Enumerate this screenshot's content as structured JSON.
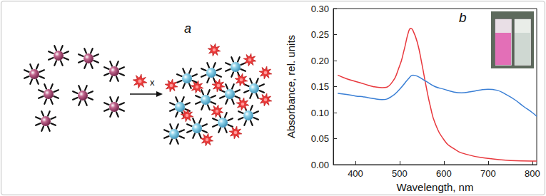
{
  "diagram": {
    "label": "a",
    "reagent": "x"
  },
  "chart_data": {
    "type": "line",
    "title": "b",
    "x_label": "Wavelength, nm",
    "y_label": "Absorbance, rel. units",
    "xlim": [
      350,
      810
    ],
    "xticks": [
      400,
      500,
      600,
      700,
      800
    ],
    "ylim": [
      0,
      0.3
    ],
    "yticks": [
      {
        "value": 0,
        "label": "0.00"
      },
      {
        "value": 0.05,
        "label": "0.05"
      },
      {
        "value": 0.1,
        "label": "0.10"
      },
      {
        "value": 0.15,
        "label": "0.15"
      },
      {
        "value": 0.2,
        "label": "0.20"
      },
      {
        "value": 0.25,
        "label": "0.25"
      },
      {
        "value": 0.3,
        "label": "0.30"
      }
    ],
    "grid": false,
    "series": [
      {
        "color": "#e8383d",
        "x": [
          360,
          380,
          400,
          420,
          440,
          460,
          480,
          500,
          510,
          520,
          525,
          530,
          540,
          550,
          560,
          570,
          580,
          600,
          620,
          650,
          700,
          750,
          800,
          810
        ],
        "values": [
          0.172,
          0.165,
          0.16,
          0.155,
          0.15,
          0.148,
          0.155,
          0.19,
          0.22,
          0.255,
          0.262,
          0.258,
          0.235,
          0.195,
          0.15,
          0.11,
          0.08,
          0.048,
          0.032,
          0.02,
          0.012,
          0.008,
          0.007,
          0.007
        ]
      },
      {
        "color": "#3a7fd5",
        "x": [
          360,
          380,
          400,
          420,
          440,
          460,
          480,
          500,
          520,
          530,
          540,
          560,
          580,
          600,
          620,
          640,
          660,
          680,
          700,
          720,
          740,
          760,
          780,
          800,
          810
        ],
        "values": [
          0.137,
          0.135,
          0.132,
          0.13,
          0.127,
          0.125,
          0.13,
          0.145,
          0.165,
          0.172,
          0.17,
          0.16,
          0.15,
          0.145,
          0.14,
          0.138,
          0.14,
          0.143,
          0.145,
          0.143,
          0.135,
          0.125,
          0.112,
          0.1,
          0.093
        ]
      }
    ]
  }
}
